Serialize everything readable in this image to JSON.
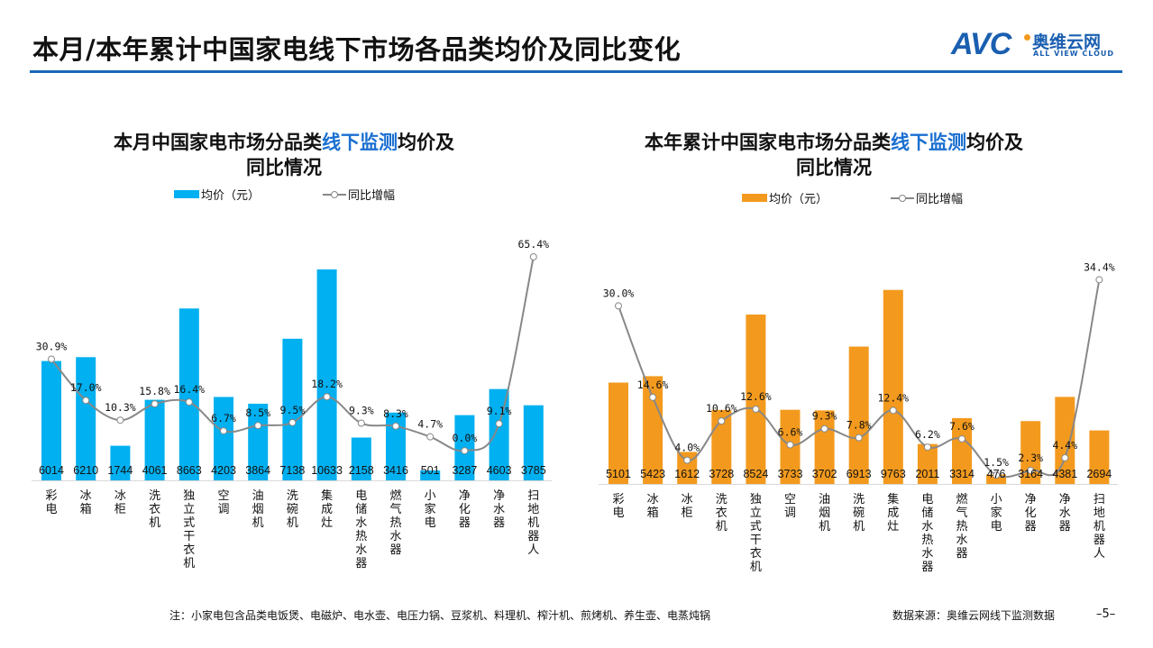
{
  "header": {
    "title": "本月/本年累计中国家电线下市场各品类均价及同比变化"
  },
  "logo": {
    "mark": "AVC",
    "name_cn": "奥维云网",
    "name_en": "ALL VIEW CLOUD"
  },
  "colors": {
    "accent": "#1a66b8",
    "monthly_bar": "#00b0f0",
    "ytd_bar": "#f39a1e",
    "line": "#888888"
  },
  "chart_data": [
    {
      "type": "bar",
      "title_pre": "本月中国家电市场分品类",
      "title_highlight": "线下监测",
      "title_post": "均价及",
      "title_line2": "同比情况",
      "legend": [
        "均价（元）",
        "同比增幅"
      ],
      "legend_placement": "top",
      "categories": [
        "彩电",
        "冰箱",
        "冰柜",
        "洗衣机",
        "独立式干衣机",
        "空调",
        "油烟机",
        "洗碗机",
        "集成灶",
        "电储水热水器",
        "燃气热水器",
        "小家电",
        "净化器",
        "净水器",
        "扫地机器人"
      ],
      "series": [
        {
          "name": "均价（元）",
          "type": "bar",
          "values": [
            6014,
            6210,
            1744,
            4061,
            8663,
            4203,
            3864,
            7138,
            10633,
            2158,
            3416,
            501,
            3287,
            4603,
            3785
          ],
          "color": "#00b0f0"
        },
        {
          "name": "同比增幅",
          "type": "line",
          "values": [
            30.9,
            17.0,
            10.3,
            15.8,
            16.4,
            6.7,
            8.5,
            9.5,
            18.2,
            9.3,
            8.3,
            4.7,
            0.0,
            9.1,
            65.4
          ],
          "labels": [
            "30.9%",
            "17.0%",
            "10.3%",
            "15.8%",
            "16.4%",
            "6.7%",
            "8.5%",
            "9.5%",
            "18.2%",
            "9.3%",
            "8.3%",
            "4.7%",
            "0.0%",
            "9.1%",
            "65.4%"
          ],
          "color": "#888888"
        }
      ],
      "ylim": [
        0,
        12400
      ],
      "y2lim": [
        -10,
        73
      ],
      "grid": false
    },
    {
      "type": "bar",
      "title_pre": "本年累计中国家电市场分品类",
      "title_highlight": "线下监测",
      "title_post": "均价及",
      "title_line2": "同比情况",
      "legend": [
        "均价（元）",
        "同比增幅"
      ],
      "legend_placement": "top",
      "categories": [
        "彩电",
        "冰箱",
        "冰柜",
        "洗衣机",
        "独立式干衣机",
        "空调",
        "油烟机",
        "洗碗机",
        "集成灶",
        "电储水热水器",
        "燃气热水器",
        "小家电",
        "净化器",
        "净水器",
        "扫地机器人"
      ],
      "series": [
        {
          "name": "均价（元）",
          "type": "bar",
          "values": [
            5101,
            5423,
            1612,
            3728,
            8524,
            3733,
            3702,
            6913,
            9763,
            2011,
            3314,
            476,
            3164,
            4381,
            2694
          ],
          "color": "#f39a1e"
        },
        {
          "name": "同比增幅",
          "type": "line",
          "values": [
            30.0,
            14.6,
            4.0,
            10.6,
            12.6,
            6.6,
            9.3,
            7.8,
            12.4,
            6.2,
            7.6,
            1.5,
            2.3,
            4.4,
            34.4
          ],
          "labels": [
            "30.0%",
            "14.6%",
            "4.0%",
            "10.6%",
            "12.6%",
            "6.6%",
            "9.3%",
            "7.8%",
            "12.4%",
            "6.2%",
            "7.6%",
            "1.5%",
            "2.3%",
            "4.4%",
            "34.4%"
          ],
          "color": "#888888"
        }
      ],
      "ylim": [
        0,
        11200
      ],
      "y2lim": [
        0,
        37.5
      ],
      "grid": false
    }
  ],
  "footer": {
    "note": "注：小家电包含品类电饭煲、电磁炉、电水壶、电压力锅、豆浆机、料理机、榨汁机、煎烤机、养生壶、电蒸炖锅",
    "source": "数据来源：奥维云网线下监测数据",
    "page": "–5–"
  }
}
